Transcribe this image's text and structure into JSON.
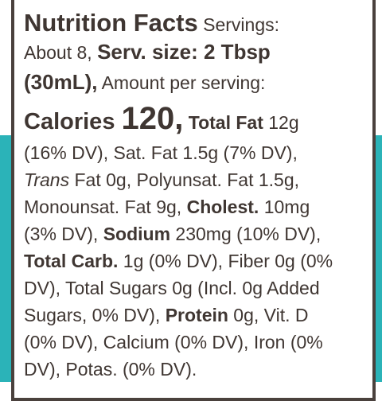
{
  "label": {
    "lines": [
      [
        "Nutrition Facts",
        " Servings:"
      ],
      [
        "About 8, ",
        "Serv. size: 2 Tbsp"
      ],
      [
        "(30mL),",
        " Amount per serving:"
      ],
      [
        "Calories ",
        "120,",
        " Total Fat",
        " 12g"
      ],
      [
        "(16% DV), Sat. Fat 1.5g (7% DV),"
      ],
      [
        "Trans",
        " Fat 0g, Polyunsat. Fat 1.5g,"
      ],
      [
        "Monounsat. Fat 9g, ",
        "Cholest.",
        " 10mg"
      ],
      [
        "(3% DV), ",
        "Sodium",
        " 230mg (10% DV),"
      ],
      [
        "Total Carb.",
        " 1g (0% DV), Fiber 0g (0%"
      ],
      [
        "DV), Total Sugars 0g (Incl. 0g Added"
      ],
      [
        "Sugars, 0% DV), ",
        "Protein",
        " 0g, Vit. D"
      ],
      [
        "(0% DV), Calcium (0% DV), Iron (0%"
      ],
      [
        "DV), Potas. (0% DV)."
      ]
    ]
  }
}
